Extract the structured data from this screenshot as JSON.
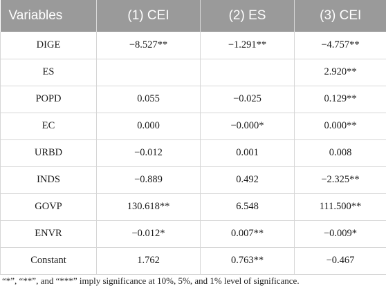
{
  "table": {
    "headers": [
      "Variables",
      "(1) CEI",
      "(2) ES",
      "(3) CEI"
    ],
    "rows": [
      [
        "DIGE",
        "−8.527**",
        "−1.291**",
        "−4.757**"
      ],
      [
        "ES",
        "",
        "",
        "2.920**"
      ],
      [
        "POPD",
        "0.055",
        "−0.025",
        "0.129**"
      ],
      [
        "EC",
        "0.000",
        "−0.000*",
        "0.000**"
      ],
      [
        "URBD",
        "−0.012",
        "0.001",
        "0.008"
      ],
      [
        "INDS",
        "−0.889",
        "0.492",
        "−2.325**"
      ],
      [
        "GOVP",
        "130.618**",
        "6.548",
        "111.500**"
      ],
      [
        "ENVR",
        "−0.012*",
        "0.007**",
        "−0.009*"
      ],
      [
        "Constant",
        "1.762",
        "0.763**",
        "−0.467"
      ]
    ]
  },
  "footnote": "“*”, “**”, and “***” imply significance at 10%, 5%, and 1% level of significance."
}
